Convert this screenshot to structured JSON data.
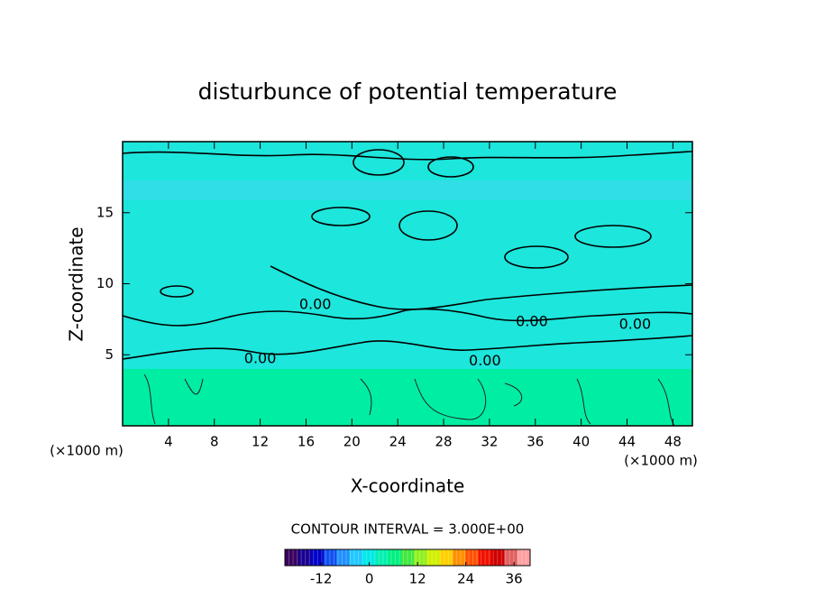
{
  "chart_data": {
    "type": "contour",
    "title": "disturbunce of potential temperature",
    "xlabel": "X-coordinate",
    "ylabel": "Z-coordinate",
    "x_unit": "(×1000 m)",
    "y_unit": "(×1000 m)",
    "xlim": [
      0,
      49.7
    ],
    "ylim": [
      0,
      20
    ],
    "xticks": [
      4,
      8,
      12,
      16,
      20,
      24,
      28,
      32,
      36,
      40,
      44,
      48
    ],
    "yticks": [
      5,
      10,
      15
    ],
    "contour_labels": [
      {
        "value": 0,
        "label": "0.00",
        "x": 12.0,
        "y": 4.7
      },
      {
        "value": 0,
        "label": "0.00",
        "x": 31.6,
        "y": 4.55
      },
      {
        "value": 0,
        "label": "0.00",
        "x": 16.8,
        "y": 8.5
      },
      {
        "value": 0,
        "label": "0.00",
        "x": 35.7,
        "y": 7.3
      },
      {
        "value": 0,
        "label": "0.00",
        "x": 44.7,
        "y": 7.1
      }
    ],
    "contour_interval_label": "CONTOUR INTERVAL = 3.000E+00",
    "colorbar": {
      "lim": [
        -21,
        40
      ],
      "ticks": [
        -12,
        0,
        12,
        24,
        36
      ],
      "colors": [
        "#3a0060",
        "#1a0090",
        "#0000c8",
        "#1050f0",
        "#2090ff",
        "#20c8ff",
        "#00e8e8",
        "#00f0b0",
        "#00f080",
        "#40e840",
        "#90f020",
        "#d0f000",
        "#ffd000",
        "#ff9000",
        "#ff5000",
        "#f01000",
        "#d00000",
        "#e06060",
        "#ffa0a0"
      ]
    }
  }
}
